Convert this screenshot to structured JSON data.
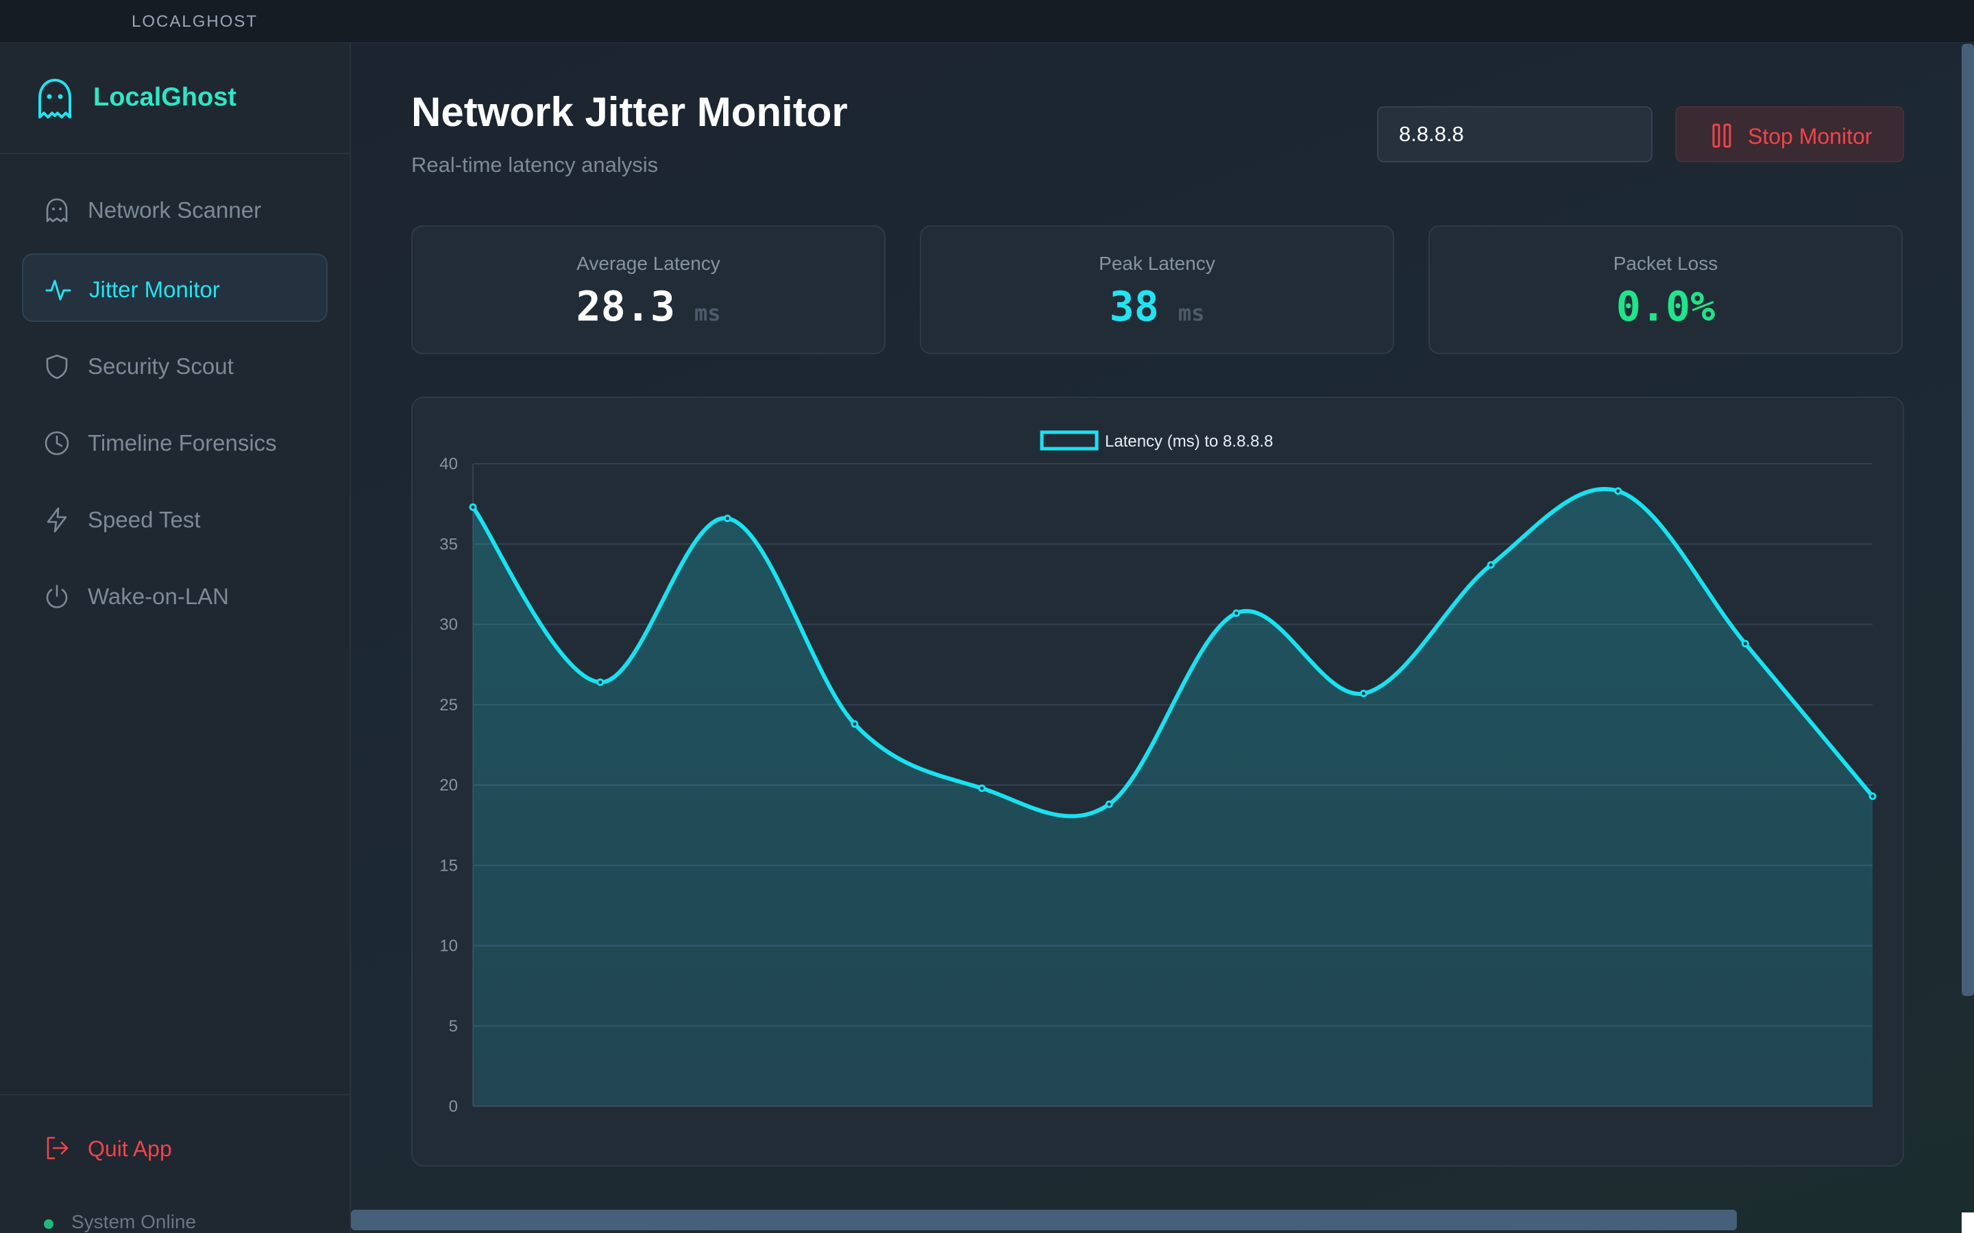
{
  "window": {
    "title": "LOCALGHOST"
  },
  "sidebar": {
    "brand": "LocalGhost",
    "items": [
      {
        "label": "Network Scanner",
        "icon": "ghost-icon"
      },
      {
        "label": "Jitter Monitor",
        "icon": "activity-icon",
        "active": true
      },
      {
        "label": "Security Scout",
        "icon": "shield-icon"
      },
      {
        "label": "Timeline Forensics",
        "icon": "clock-icon"
      },
      {
        "label": "Speed Test",
        "icon": "bolt-icon"
      },
      {
        "label": "Wake-on-LAN",
        "icon": "power-icon"
      }
    ],
    "quit_label": "Quit App",
    "status_label": "System Online"
  },
  "header": {
    "title": "Network Jitter Monitor",
    "subtitle": "Real-time latency analysis",
    "host_value": "8.8.8.8",
    "stop_label": "Stop Monitor"
  },
  "stats": {
    "avg": {
      "label": "Average Latency",
      "value": "28.3",
      "unit": "ms"
    },
    "peak": {
      "label": "Peak Latency",
      "value": "38",
      "unit": "ms"
    },
    "loss": {
      "label": "Packet Loss",
      "value": "0.0%"
    }
  },
  "colors": {
    "accent": "#22e3f0",
    "brand": "#2ee6c6",
    "danger": "#f0444c",
    "success": "#1fe58a",
    "chart_line": "#19e2f0"
  },
  "chart_data": {
    "type": "line",
    "legend": "Latency (ms) to 8.8.8.8",
    "legend_position": "top-center",
    "x": [
      1,
      2,
      3,
      4,
      5,
      6,
      7,
      8,
      9,
      10,
      11,
      12
    ],
    "values": [
      37.3,
      26.4,
      36.6,
      23.8,
      19.8,
      18.8,
      30.7,
      25.7,
      33.7,
      38.3,
      28.8,
      19.3
    ],
    "ylim": [
      0,
      40
    ],
    "yticks": [
      0,
      5,
      10,
      15,
      20,
      25,
      30,
      35,
      40
    ],
    "grid": true,
    "fill": true,
    "smooth": true
  }
}
